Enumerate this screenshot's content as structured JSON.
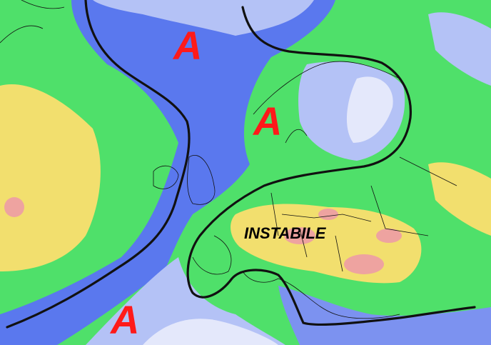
{
  "map": {
    "labels": {
      "anticyclone_1": "A",
      "anticyclone_2": "A",
      "anticyclone_3": "A",
      "unstable": "INSTABILE"
    },
    "colors": {
      "label_a": "#ff1a1a",
      "label_unstable": "#000000",
      "front_line": "#111111",
      "green": "#4fe06a",
      "blue": "#5a78ee",
      "light_blue": "#b4c2f6",
      "pale": "#e4e8fb",
      "yellow": "#f2df6e",
      "pink": "#eea3a0"
    }
  }
}
